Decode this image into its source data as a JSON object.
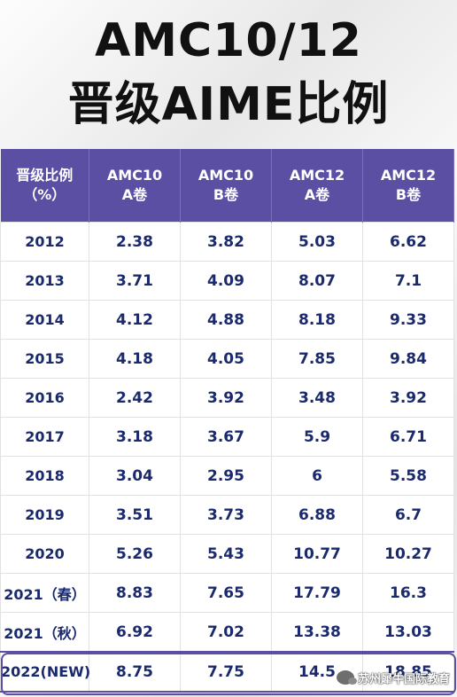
{
  "title": {
    "line1": "AMC10/12",
    "line2": "晋级AIME比例"
  },
  "table": {
    "headers": [
      [
        "晋级比例",
        "（%）"
      ],
      [
        "AMC10",
        "A卷"
      ],
      [
        "AMC10",
        "B卷"
      ],
      [
        "AMC12",
        "A卷"
      ],
      [
        "AMC12",
        "B卷"
      ]
    ],
    "rows": [
      [
        "2012",
        "2.38",
        "3.82",
        "5.03",
        "6.62"
      ],
      [
        "2013",
        "3.71",
        "4.09",
        "8.07",
        "7.1"
      ],
      [
        "2014",
        "4.12",
        "4.88",
        "8.18",
        "9.33"
      ],
      [
        "2015",
        "4.18",
        "4.05",
        "7.85",
        "9.84"
      ],
      [
        "2016",
        "2.42",
        "3.92",
        "3.48",
        "3.92"
      ],
      [
        "2017",
        "3.18",
        "3.67",
        "5.9",
        "6.71"
      ],
      [
        "2018",
        "3.04",
        "2.95",
        "6",
        "5.58"
      ],
      [
        "2019",
        "3.51",
        "3.73",
        "6.88",
        "6.7"
      ],
      [
        "2020",
        "5.26",
        "5.43",
        "10.77",
        "10.27"
      ],
      [
        "2021（春）",
        "8.83",
        "7.65",
        "17.79",
        "16.3"
      ],
      [
        "2021（秋）",
        "6.92",
        "7.02",
        "13.38",
        "13.03"
      ],
      [
        "2022(NEW)",
        "8.75",
        "7.75",
        "14.5",
        "18.85"
      ]
    ]
  },
  "watermark": {
    "text": "苏州犀牛国际教育",
    "icon": "wechat-icon"
  },
  "colors": {
    "header_bg": "#5a4fa3",
    "cell_text": "#1a2a6c",
    "title_text": "#111111"
  }
}
